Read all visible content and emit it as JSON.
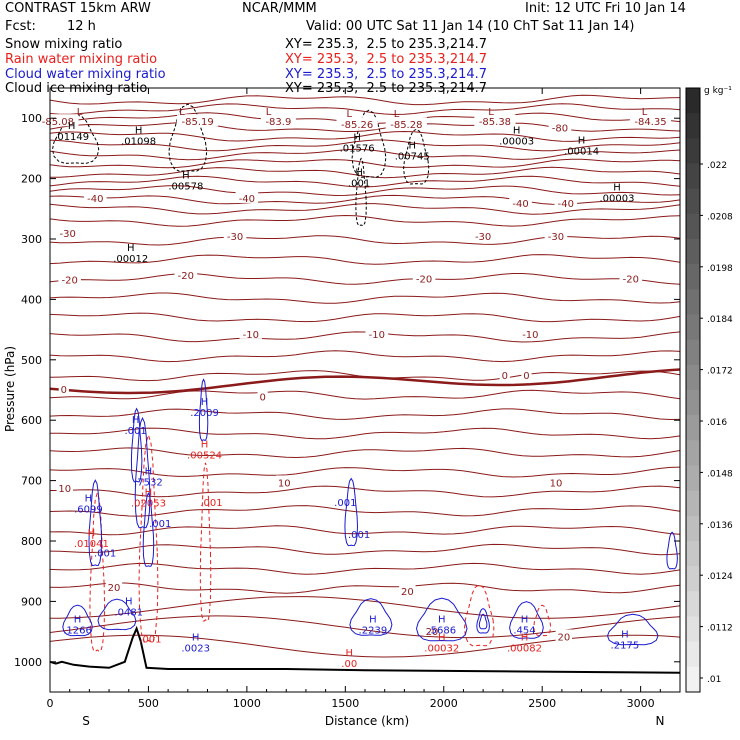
{
  "header": {
    "model": "CONTRAST 15km ARW",
    "center": "NCAR/MMM",
    "init": "Init: 12 UTC Fri 10 Jan 14",
    "fcst_label": "Fcst:",
    "fcst_value": "12 h",
    "valid": "Valid: 00 UTC Sat 11 Jan 14 (10 ChT Sat 11 Jan 14)",
    "fields": [
      {
        "name": "Snow mixing ratio",
        "xy": "XY= 235.3,  2.5 to 235.3,214.7",
        "color": "#000000"
      },
      {
        "name": "Rain water mixing ratio",
        "xy": "XY= 235.3,  2.5 to 235.3,214.7",
        "color": "#e8201c"
      },
      {
        "name": "Cloud water mixing ratio",
        "xy": "XY= 235.3,  2.5 to 235.3,214.7",
        "color": "#1a1ad0"
      },
      {
        "name": "Cloud ice mixing ratio",
        "xy": "XY= 235.3,  2.5 to 235.3,214.7",
        "color": "#000000"
      }
    ]
  },
  "chart_data": {
    "type": "cross-section",
    "xlabel": "Distance (km)",
    "ylabel": "Pressure (hPa)",
    "xlim": [
      0,
      3200
    ],
    "ylim": [
      1050,
      50
    ],
    "x_ticks": [
      0,
      500,
      1000,
      1500,
      2000,
      2500,
      3000
    ],
    "y_ticks": [
      100,
      200,
      300,
      400,
      500,
      600,
      700,
      800,
      900,
      1000
    ],
    "endpoints": {
      "left": "S",
      "right": "N"
    },
    "colorbar": {
      "unit": "g kg⁻¹",
      "labels": [
        ".022",
        ".0208",
        ".0198",
        ".0184",
        ".0172",
        ".016",
        ".0148",
        ".0136",
        ".0124",
        ".0112",
        ".01"
      ],
      "dark": "#2a2a2a",
      "light": "#f2f2f2"
    },
    "isotherm_color": "#8b1a1a",
    "isotherm_labels": [
      {
        "text": "-85.08",
        "x": 40,
        "p": 105
      },
      {
        "text": "-85.19",
        "x": 750,
        "p": 105
      },
      {
        "text": "-83.9",
        "x": 1160,
        "p": 105
      },
      {
        "text": "-85.26",
        "x": 1560,
        "p": 110
      },
      {
        "text": "-85.28",
        "x": 1810,
        "p": 110
      },
      {
        "text": "-85.38",
        "x": 2260,
        "p": 105
      },
      {
        "text": "-80",
        "x": 2590,
        "p": 115
      },
      {
        "text": "-84.35",
        "x": 3050,
        "p": 105
      },
      {
        "text": "-40",
        "x": 230,
        "p": 232
      },
      {
        "text": "-40",
        "x": 1000,
        "p": 232
      },
      {
        "text": "-40",
        "x": 2390,
        "p": 240
      },
      {
        "text": "-40",
        "x": 2620,
        "p": 240
      },
      {
        "text": "-30",
        "x": 90,
        "p": 290
      },
      {
        "text": "-30",
        "x": 940,
        "p": 295
      },
      {
        "text": "-30",
        "x": 2200,
        "p": 295
      },
      {
        "text": "-30",
        "x": 2570,
        "p": 295
      },
      {
        "text": "-20",
        "x": 100,
        "p": 367
      },
      {
        "text": "-20",
        "x": 690,
        "p": 360
      },
      {
        "text": "-20",
        "x": 1900,
        "p": 365
      },
      {
        "text": "-20",
        "x": 2950,
        "p": 365
      },
      {
        "text": "-10",
        "x": 1020,
        "p": 457
      },
      {
        "text": "-10",
        "x": 1660,
        "p": 457
      },
      {
        "text": "-10",
        "x": 2440,
        "p": 457
      },
      {
        "text": "0",
        "x": 70,
        "p": 548
      },
      {
        "text": "0",
        "x": 1080,
        "p": 561
      },
      {
        "text": "0",
        "x": 2310,
        "p": 525
      },
      {
        "text": "0",
        "x": 2420,
        "p": 525
      },
      {
        "text": "10",
        "x": 75,
        "p": 712
      },
      {
        "text": "10",
        "x": 1190,
        "p": 703
      },
      {
        "text": "10",
        "x": 2570,
        "p": 703
      },
      {
        "text": "20",
        "x": 325,
        "p": 876
      },
      {
        "text": "20",
        "x": 1815,
        "p": 883
      },
      {
        "text": "20",
        "x": 1940,
        "p": 949
      },
      {
        "text": "20",
        "x": 2610,
        "p": 958
      }
    ],
    "max_min_labels": [
      {
        "letter": "L",
        "value": "-85.08",
        "x": 150,
        "p": 95,
        "color": "#8b1a1a",
        "show_value": false
      },
      {
        "letter": "L",
        "value": "-85.19",
        "x": 670,
        "p": 95,
        "color": "#8b1a1a",
        "show_value": false
      },
      {
        "letter": "L",
        "value": "-83.9",
        "x": 1110,
        "p": 95,
        "color": "#8b1a1a",
        "show_value": false
      },
      {
        "letter": "L",
        "value": "-85.26",
        "x": 1520,
        "p": 98,
        "color": "#8b1a1a",
        "show_value": false
      },
      {
        "letter": "L",
        "value": "-85.28",
        "x": 1760,
        "p": 98,
        "color": "#8b1a1a",
        "show_value": false
      },
      {
        "letter": "L",
        "value": "-85.38",
        "x": 2240,
        "p": 95,
        "color": "#8b1a1a",
        "show_value": false
      },
      {
        "letter": "L",
        "value": "-84.35",
        "x": 3020,
        "p": 95,
        "color": "#8b1a1a",
        "show_value": false
      },
      {
        "letter": "H",
        "value": ".01149",
        "x": 110,
        "p": 118,
        "color": "#000000",
        "show_value": true
      },
      {
        "letter": "H",
        "value": ".01098",
        "x": 450,
        "p": 125,
        "color": "#000000",
        "show_value": true
      },
      {
        "letter": "H",
        "value": ".01576",
        "x": 1560,
        "p": 137,
        "color": "#000000",
        "show_value": true
      },
      {
        "letter": "H",
        "value": ".00745",
        "x": 1840,
        "p": 150,
        "color": "#000000",
        "show_value": true
      },
      {
        "letter": "H",
        "value": ".00003",
        "x": 2370,
        "p": 125,
        "color": "#000000",
        "show_value": true
      },
      {
        "letter": "H",
        "value": ".00014",
        "x": 2700,
        "p": 142,
        "color": "#000000",
        "show_value": true
      },
      {
        "letter": "H",
        "value": ".00578",
        "x": 690,
        "p": 200,
        "color": "#000000",
        "show_value": true
      },
      {
        "letter": "H",
        "value": ".001",
        "x": 1570,
        "p": 195,
        "color": "#000000",
        "show_value": true
      },
      {
        "letter": "H",
        "value": ".00003",
        "x": 2880,
        "p": 220,
        "color": "#000000",
        "show_value": true
      },
      {
        "letter": "H",
        "value": ".00012",
        "x": 410,
        "p": 320,
        "color": "#000000",
        "show_value": true
      },
      {
        "letter": "H",
        "value": ".2009",
        "x": 785,
        "p": 575,
        "color": "#1a1ad0",
        "show_value": true
      },
      {
        "letter": "H",
        "value": ".001",
        "x": 435,
        "p": 605,
        "color": "#1a1ad0",
        "show_value": true
      },
      {
        "letter": "H",
        "value": ".00524",
        "x": 785,
        "p": 645,
        "color": "#e8201c",
        "show_value": true
      },
      {
        "letter": "H",
        "value": ".7532",
        "x": 500,
        "p": 690,
        "color": "#1a1ad0",
        "show_value": true
      },
      {
        "letter": "H",
        "value": ".02053",
        "x": 500,
        "p": 725,
        "color": "#e8201c",
        "show_value": true
      },
      {
        "letter": "H",
        "value": ".6099",
        "x": 195,
        "p": 735,
        "color": "#1a1ad0",
        "show_value": true
      },
      {
        "letter": "H",
        "value": ".01041",
        "x": 210,
        "p": 792,
        "color": "#e8201c",
        "show_value": true
      },
      {
        "letter": "H",
        "value": ".0481",
        "x": 400,
        "p": 905,
        "color": "#1a1ad0",
        "show_value": true
      },
      {
        "letter": "H",
        "value": ".1266",
        "x": 140,
        "p": 935,
        "color": "#1a1ad0",
        "show_value": true
      },
      {
        "letter": "H",
        "value": ".2239",
        "x": 1640,
        "p": 935,
        "color": "#1a1ad0",
        "show_value": true
      },
      {
        "letter": "H",
        "value": ".5686",
        "x": 1990,
        "p": 935,
        "color": "#1a1ad0",
        "show_value": true
      },
      {
        "letter": "H",
        "value": ".454",
        "x": 2410,
        "p": 935,
        "color": "#1a1ad0",
        "show_value": true
      },
      {
        "letter": "H",
        "value": ".00032",
        "x": 1990,
        "p": 965,
        "color": "#e8201c",
        "show_value": true
      },
      {
        "letter": "H",
        "value": ".00082",
        "x": 2410,
        "p": 965,
        "color": "#e8201c",
        "show_value": true
      },
      {
        "letter": "H",
        "value": ".2175",
        "x": 2920,
        "p": 960,
        "color": "#1a1ad0",
        "show_value": true
      },
      {
        "letter": "H",
        "value": ".0023",
        "x": 740,
        "p": 965,
        "color": "#1a1ad0",
        "show_value": true
      },
      {
        "letter": "H",
        "value": ".00",
        "x": 1520,
        "p": 990,
        "color": "#e8201c",
        "show_value": true
      }
    ],
    "text_labels": [
      {
        "text": ".001",
        "x": 280,
        "p": 826,
        "color": "#1a1ad0"
      },
      {
        "text": ".001",
        "x": 1500,
        "p": 742,
        "color": "#1a1ad0"
      },
      {
        "text": ".001",
        "x": 1570,
        "p": 795,
        "color": "#1a1ad0"
      },
      {
        "text": ".001",
        "x": 560,
        "p": 777,
        "color": "#1a1ad0"
      },
      {
        "text": ".001",
        "x": 820,
        "p": 742,
        "color": "#e8201c"
      },
      {
        "text": ".001",
        "x": 510,
        "p": 968,
        "color": "#e8201c"
      }
    ]
  }
}
